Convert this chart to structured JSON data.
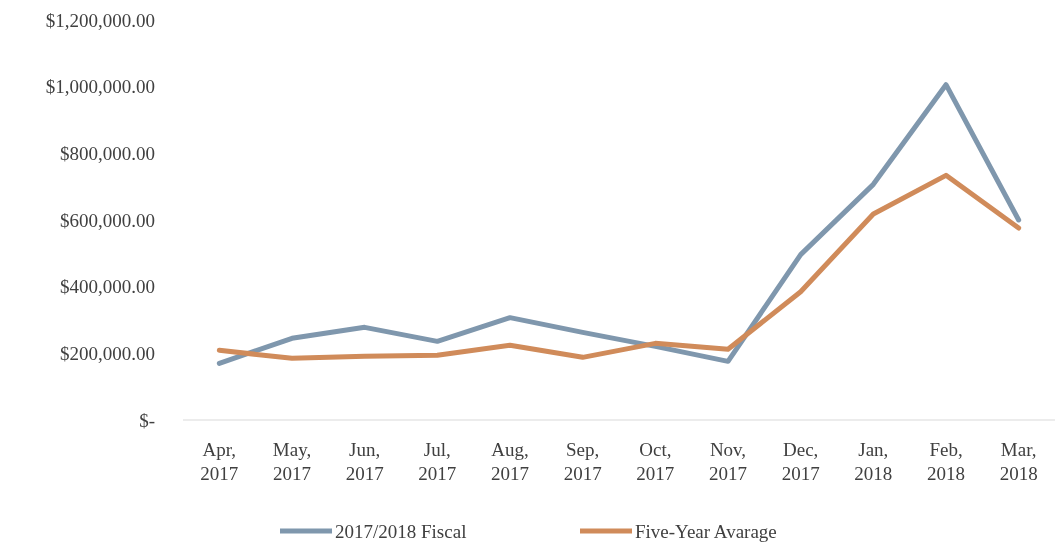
{
  "chart_data": {
    "type": "line",
    "categories": [
      "Apr, 2017",
      "May, 2017",
      "Jun, 2017",
      "Jul, 2017",
      "Aug, 2017",
      "Sep, 2017",
      "Oct, 2017",
      "Nov, 2017",
      "Dec, 2017",
      "Jan, 2018",
      "Feb, 2018",
      "Mar, 2018"
    ],
    "series": [
      {
        "name": "2017/2018 Fiscal",
        "color": "#7f97ad",
        "values": [
          170000,
          245000,
          278000,
          236000,
          307000,
          263000,
          221000,
          176000,
          496000,
          707000,
          1006000,
          600000
        ]
      },
      {
        "name": "Five-Year Avarage",
        "color": "#d08b5a",
        "values": [
          209000,
          185000,
          191000,
          194000,
          224000,
          188000,
          230000,
          212000,
          385000,
          618000,
          734000,
          576000
        ]
      }
    ],
    "ylim": [
      0,
      1200000
    ],
    "yticks": [
      {
        "value": 0,
        "label": "$-"
      },
      {
        "value": 200000,
        "label": "$200,000.00"
      },
      {
        "value": 400000,
        "label": "$400,000.00"
      },
      {
        "value": 600000,
        "label": "$600,000.00"
      },
      {
        "value": 800000,
        "label": "$800,000.00"
      },
      {
        "value": 1000000,
        "label": "$1,000,000.00"
      },
      {
        "value": 1200000,
        "label": "$1,200,000.00"
      }
    ],
    "grid": false,
    "legend": "bottom",
    "marker": "none",
    "line_style": "solid"
  }
}
